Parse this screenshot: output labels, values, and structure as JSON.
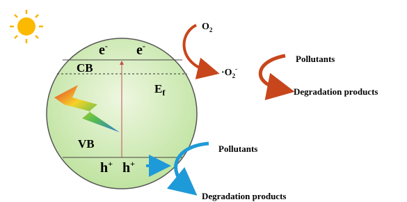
{
  "band": {
    "electrons": [
      {
        "base": "e",
        "sup": "-"
      },
      {
        "base": "e",
        "sup": "-"
      }
    ],
    "cb": "CB",
    "fermi": {
      "base": "E",
      "sub": "f"
    },
    "vb": "VB",
    "holes": [
      {
        "base": "h",
        "sup": "+"
      },
      {
        "base": "h",
        "sup": "+"
      }
    ]
  },
  "reduction": {
    "oxygen": {
      "base": "O",
      "sub": "2"
    },
    "superoxide": {
      "pre": "·O",
      "sub": "2",
      "sup": "-"
    },
    "pollutants": "Pollutants",
    "products": "Degradation products"
  },
  "oxidation": {
    "pollutants": "Pollutants",
    "products": "Degradation products"
  }
}
